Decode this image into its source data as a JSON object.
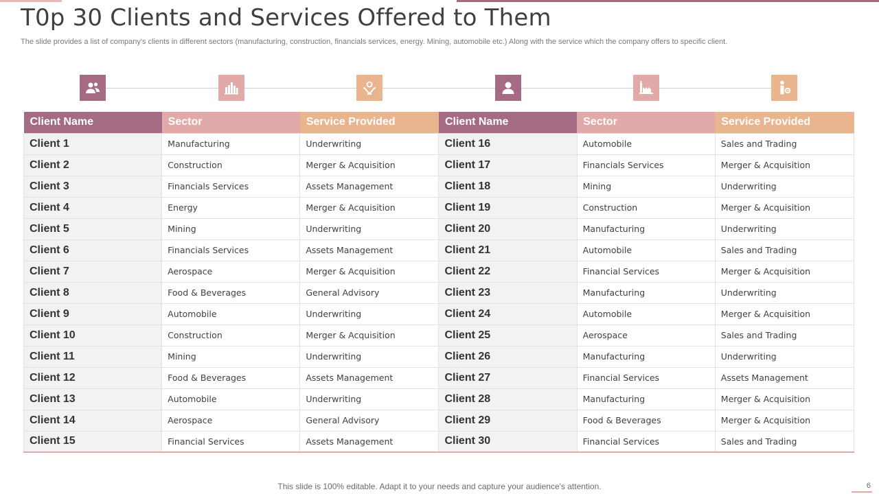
{
  "slide": {
    "title": "T0p 30 Clients and Services Offered to Them",
    "subtitle": "The slide provides a list of company's clients in different sectors (manufacturing, construction, financials services, energy. Mining, automobile etc.) Along with the service which the company offers to specific client.",
    "footer": "This slide is 100% editable. Adapt it to your needs and capture your audience's attention.",
    "page_number": "6"
  },
  "icons": [
    {
      "name": "users-icon",
      "color": "#a56a84"
    },
    {
      "name": "factory-icon",
      "color": "#e2a9a9"
    },
    {
      "name": "hand-money-icon",
      "color": "#e8b58e"
    },
    {
      "name": "user-icon",
      "color": "#a56a84"
    },
    {
      "name": "industry-icon",
      "color": "#e2a9a9"
    },
    {
      "name": "person-gear-icon",
      "color": "#e8b58e"
    }
  ],
  "headers": [
    "Client Name",
    "Sector",
    "Service Provided",
    "Client Name",
    "Sector",
    "Service Provided"
  ],
  "rows": [
    {
      "c1": "Client 1",
      "s1": "Manufacturing",
      "v1": "Underwriting",
      "c2": "Client 16",
      "s2": "Automobile",
      "v2": "Sales and Trading"
    },
    {
      "c1": "Client 2",
      "s1": "Construction",
      "v1": "Merger & Acquisition",
      "c2": "Client 17",
      "s2": "Financials Services",
      "v2": "Merger & Acquisition"
    },
    {
      "c1": "Client 3",
      "s1": "Financials Services",
      "v1": "Assets Management",
      "c2": "Client 18",
      "s2": "Mining",
      "v2": "Underwriting"
    },
    {
      "c1": "Client 4",
      "s1": "Energy",
      "v1": "Merger & Acquisition",
      "c2": "Client 19",
      "s2": "Construction",
      "v2": "Merger & Acquisition"
    },
    {
      "c1": "Client 5",
      "s1": "Mining",
      "v1": "Underwriting",
      "c2": "Client 20",
      "s2": "Manufacturing",
      "v2": "Underwriting"
    },
    {
      "c1": "Client 6",
      "s1": "Financials Services",
      "v1": "Assets Management",
      "c2": "Client 21",
      "s2": "Automobile",
      "v2": "Sales and Trading"
    },
    {
      "c1": "Client 7",
      "s1": "Aerospace",
      "v1": "Merger & Acquisition",
      "c2": "Client 22",
      "s2": "Financial Services",
      "v2": "Merger & Acquisition"
    },
    {
      "c1": "Client 8",
      "s1": "Food & Beverages",
      "v1": "General Advisory",
      "c2": "Client 23",
      "s2": "Manufacturing",
      "v2": "Underwriting"
    },
    {
      "c1": "Client 9",
      "s1": "Automobile",
      "v1": "Underwriting",
      "c2": "Client 24",
      "s2": "Automobile",
      "v2": "Merger & Acquisition"
    },
    {
      "c1": "Client 10",
      "s1": "Construction",
      "v1": "Merger & Acquisition",
      "c2": "Client 25",
      "s2": "Aerospace",
      "v2": "Sales and Trading"
    },
    {
      "c1": "Client 11",
      "s1": "Mining",
      "v1": "Underwriting",
      "c2": "Client 26",
      "s2": "Manufacturing",
      "v2": "Underwriting"
    },
    {
      "c1": "Client 12",
      "s1": "Food & Beverages",
      "v1": "Assets Management",
      "c2": "Client 27",
      "s2": "Financial Services",
      "v2": "Assets Management"
    },
    {
      "c1": "Client 13",
      "s1": "Automobile",
      "v1": "Underwriting",
      "c2": "Client 28",
      "s2": "Manufacturing",
      "v2": "Merger & Acquisition"
    },
    {
      "c1": "Client 14",
      "s1": "Aerospace",
      "v1": "General Advisory",
      "c2": "Client 29",
      "s2": "Food & Beverages",
      "v2": "Merger & Acquisition"
    },
    {
      "c1": "Client 15",
      "s1": "Financial Services",
      "v1": "Assets Management",
      "c2": "Client 30",
      "s2": "Financial Services",
      "v2": "Sales and Trading"
    }
  ]
}
